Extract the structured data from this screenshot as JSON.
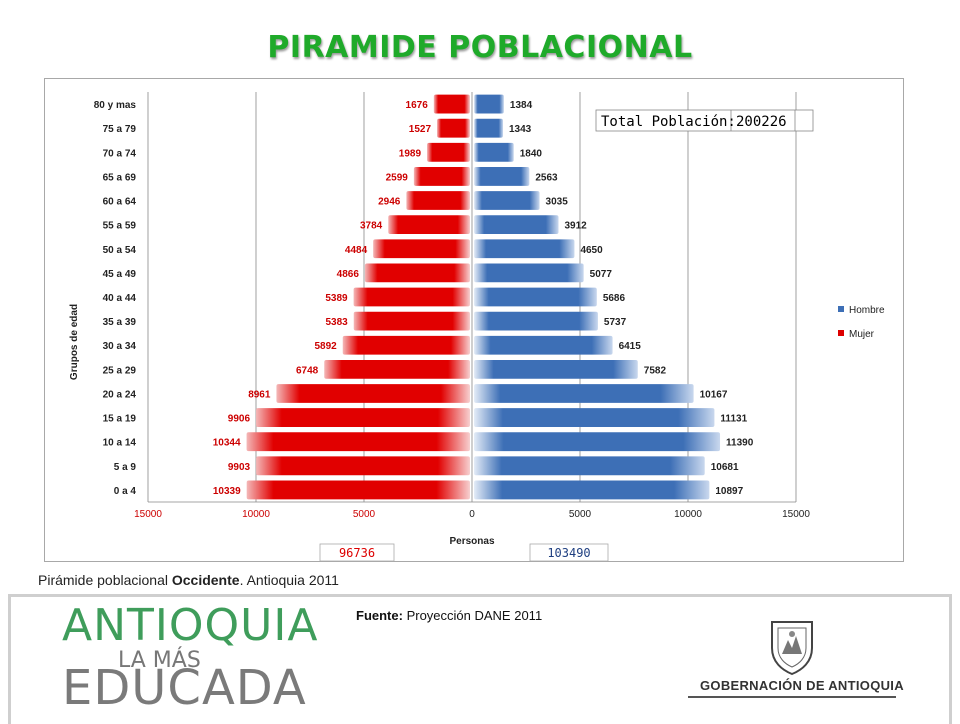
{
  "title": "PIRAMIDE POBLACIONAL",
  "chart_data": {
    "type": "bar",
    "orientation": "horizontal-population-pyramid",
    "categories": [
      "80 y mas",
      "75 a 79",
      "70 a 74",
      "65 a 69",
      "60 a 64",
      "55 a 59",
      "50 a 54",
      "45 a 49",
      "40 a 44",
      "35 a 39",
      "30 a 34",
      "25 a 29",
      "20 a 24",
      "15 a 19",
      "10 a 14",
      "5 a 9",
      "0 a 4"
    ],
    "series": [
      {
        "name": "Hombre",
        "color": "#3d6fb6",
        "values": [
          1384,
          1343,
          1840,
          2563,
          3035,
          3912,
          4650,
          5077,
          5686,
          5737,
          6415,
          7582,
          10167,
          11131,
          11390,
          10681,
          10897
        ]
      },
      {
        "name": "Mujer",
        "color": "#dd0000",
        "values": [
          1676,
          1527,
          1989,
          2599,
          2946,
          3784,
          4484,
          4866,
          5389,
          5383,
          5892,
          6748,
          8961,
          9906,
          10344,
          9903,
          10339
        ]
      }
    ],
    "xlabel": "Personas",
    "ylabel": "Grupos de edad",
    "xlim": [
      -15000,
      15000
    ],
    "xticks": [
      "15000",
      "10000",
      "5000",
      "0",
      "5000",
      "10000",
      "15000"
    ],
    "legend_position": "right",
    "total_label": "Total Población:",
    "total_value": "200226",
    "mujer_total": "96736",
    "hombre_total": "103490"
  },
  "caption": {
    "prefix": "Pirámide poblacional",
    "bold": "Occidente",
    "suffix": ".  Antioquia 2011"
  },
  "source": {
    "label": "Fuente:",
    "text": " Proyección DANE 2011"
  },
  "logo": {
    "line1": "ANTIOQUIA",
    "line2": "LA MÁS",
    "line3": "EDUCADA"
  },
  "gov": "GOBERNACIÓN DE ANTIOQUIA"
}
